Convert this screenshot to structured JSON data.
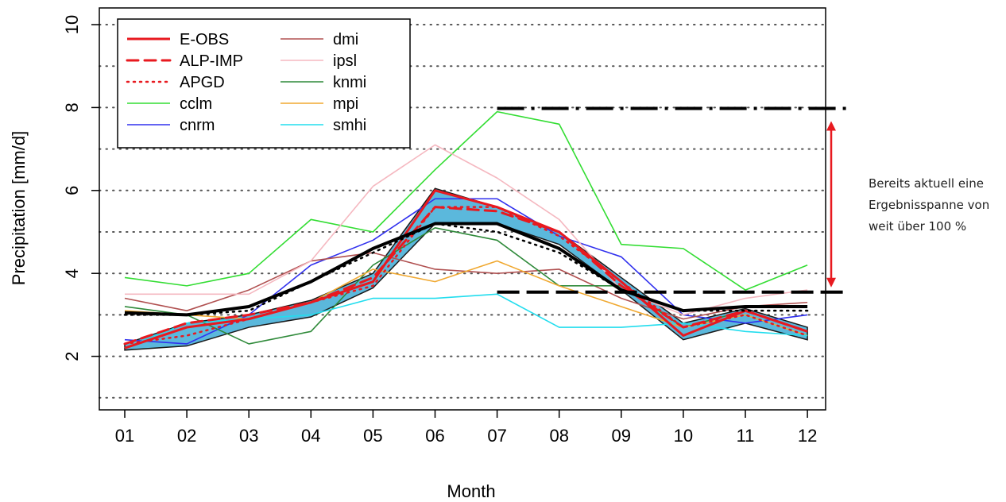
{
  "chart_data": {
    "type": "line",
    "xlabel": "Month",
    "ylabel": "Precipitation [mm/d]",
    "categories": [
      "01",
      "02",
      "03",
      "04",
      "05",
      "06",
      "07",
      "08",
      "09",
      "10",
      "11",
      "12"
    ],
    "yticks": [
      2,
      4,
      6,
      8,
      10
    ],
    "ylim": [
      0.8,
      10.4
    ],
    "grid": "horizontal dotted lines at every integer",
    "legend_position": "top-left",
    "series": [
      {
        "name": "E-OBS",
        "color": "#e8191f",
        "style": "solid-thick",
        "values": [
          2.2,
          2.7,
          2.9,
          3.3,
          3.8,
          6.0,
          5.6,
          5.0,
          3.8,
          2.5,
          3.1,
          2.6
        ]
      },
      {
        "name": "ALP-IMP",
        "color": "#e8191f",
        "style": "dashed-thick",
        "values": [
          2.3,
          2.8,
          3.0,
          3.3,
          3.9,
          5.6,
          5.5,
          5.0,
          3.7,
          2.7,
          3.1,
          2.6
        ]
      },
      {
        "name": "APGD",
        "color": "#e8191f",
        "style": "dotted",
        "values": [
          2.3,
          2.5,
          2.9,
          3.3,
          3.7,
          5.6,
          5.6,
          4.9,
          3.8,
          2.7,
          3.0,
          2.5
        ]
      },
      {
        "name": "cclm",
        "color": "#33dd33",
        "style": "solid",
        "values": [
          3.9,
          3.7,
          4.0,
          5.3,
          5.0,
          6.5,
          7.9,
          7.6,
          4.7,
          4.6,
          3.6,
          4.2
        ]
      },
      {
        "name": "cnrm",
        "color": "#3030ee",
        "style": "solid",
        "values": [
          2.4,
          2.3,
          3.0,
          4.2,
          4.8,
          5.8,
          5.8,
          4.9,
          4.4,
          3.0,
          2.8,
          3.0
        ]
      },
      {
        "name": "dmi",
        "color": "#b05050",
        "style": "solid",
        "values": [
          3.4,
          3.1,
          3.6,
          4.3,
          4.5,
          4.1,
          4.0,
          4.1,
          3.4,
          2.9,
          3.2,
          3.3
        ]
      },
      {
        "name": "ipsl",
        "color": "#f5b8c0",
        "style": "solid",
        "values": [
          3.5,
          3.5,
          3.5,
          4.3,
          6.1,
          7.1,
          6.3,
          5.3,
          3.6,
          3.0,
          3.4,
          3.6
        ]
      },
      {
        "name": "knmi",
        "color": "#2f8a3a",
        "style": "solid",
        "values": [
          3.2,
          3.0,
          2.3,
          2.6,
          4.2,
          5.1,
          4.8,
          3.7,
          3.7,
          2.7,
          3.1,
          2.6
        ]
      },
      {
        "name": "mpi",
        "color": "#f0a830",
        "style": "solid",
        "values": [
          3.1,
          3.0,
          2.9,
          3.3,
          4.1,
          3.8,
          4.3,
          3.7,
          3.2,
          2.7,
          3.0,
          2.5
        ]
      },
      {
        "name": "smhi",
        "color": "#22ddee",
        "style": "solid",
        "values": [
          2.2,
          2.8,
          2.9,
          3.0,
          3.4,
          3.4,
          3.5,
          2.7,
          2.7,
          2.8,
          2.6,
          2.5
        ]
      }
    ],
    "ensemble_mean": [
      3.05,
      3.0,
      3.2,
      3.8,
      4.6,
      5.2,
      5.2,
      4.6,
      3.6,
      3.1,
      3.2,
      3.2
    ],
    "ensemble_mean_dotted": [
      3.0,
      3.0,
      3.1,
      3.8,
      4.5,
      5.2,
      5.0,
      4.5,
      3.6,
      3.1,
      3.1,
      3.1
    ],
    "obs_band_low": [
      2.15,
      2.25,
      2.7,
      2.95,
      3.65,
      5.2,
      5.2,
      4.7,
      3.6,
      2.4,
      2.8,
      2.4
    ],
    "obs_band_high": [
      2.3,
      2.8,
      3.0,
      3.35,
      4.0,
      6.05,
      5.6,
      5.0,
      3.9,
      2.8,
      3.15,
      2.7
    ],
    "reference_lines": [
      {
        "style": "dash-dot",
        "value": 7.98,
        "from_month": "07"
      },
      {
        "style": "dashed",
        "value": 3.55,
        "from_month": "07"
      }
    ],
    "annotation": {
      "lines": [
        "Bereits aktuell eine",
        "Ergebnisspanne von",
        "weit über 100 %"
      ],
      "arrow_color": "#e8191f"
    }
  }
}
